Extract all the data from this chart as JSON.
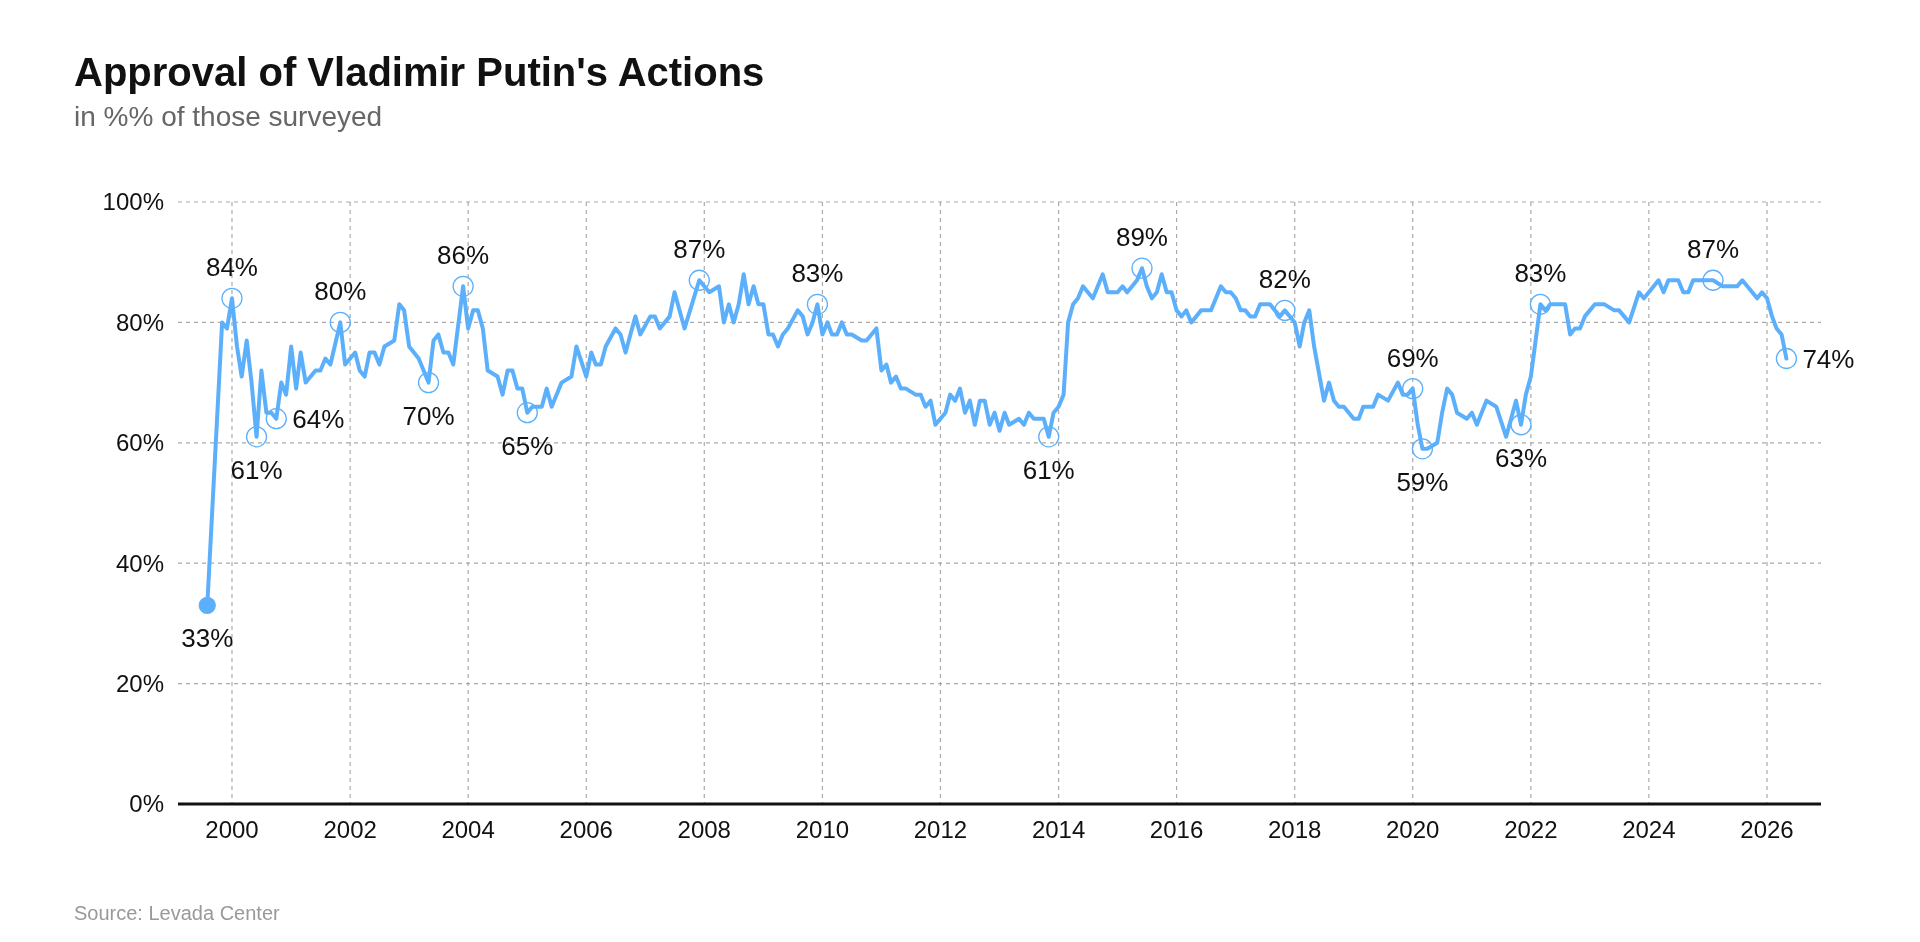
{
  "chart_data": {
    "type": "line",
    "title": "Approval of Vladimir Putin's Actions",
    "subtitle": "in %% of those surveyed",
    "x": [
      "1999-08",
      "1999-11",
      "1999-12",
      "2000-01",
      "2000-02",
      "2000-03",
      "2000-04",
      "2000-05",
      "2000-06",
      "2000-07",
      "2000-08",
      "2000-09",
      "2000-10",
      "2000-11",
      "2000-12",
      "2001-01",
      "2001-02",
      "2001-03",
      "2001-04",
      "2001-06",
      "2001-07",
      "2001-08",
      "2001-09",
      "2001-11",
      "2001-12",
      "2002-02",
      "2002-03",
      "2002-04",
      "2002-05",
      "2002-06",
      "2002-07",
      "2002-08",
      "2002-10",
      "2002-11",
      "2002-12",
      "2003-01",
      "2003-03",
      "2003-05",
      "2003-06",
      "2003-07",
      "2003-08",
      "2003-09",
      "2003-10",
      "2003-12",
      "2004-01",
      "2004-02",
      "2004-03",
      "2004-04",
      "2004-05",
      "2004-07",
      "2004-08",
      "2004-09",
      "2004-10",
      "2004-11",
      "2004-12",
      "2005-01",
      "2005-02",
      "2005-04",
      "2005-05",
      "2005-06",
      "2005-08",
      "2005-10",
      "2005-11",
      "2006-01",
      "2006-02",
      "2006-03",
      "2006-04",
      "2006-05",
      "2006-07",
      "2006-08",
      "2006-09",
      "2006-10",
      "2006-11",
      "2006-12",
      "2007-02",
      "2007-03",
      "2007-04",
      "2007-06",
      "2007-07",
      "2007-09",
      "2007-12",
      "2008-02",
      "2008-04",
      "2008-05",
      "2008-06",
      "2008-07",
      "2008-08",
      "2008-09",
      "2008-10",
      "2008-11",
      "2008-12",
      "2009-01",
      "2009-02",
      "2009-03",
      "2009-04",
      "2009-05",
      "2009-06",
      "2009-08",
      "2009-09",
      "2009-10",
      "2009-11",
      "2009-12",
      "2010-01",
      "2010-02",
      "2010-03",
      "2010-04",
      "2010-05",
      "2010-06",
      "2010-07",
      "2010-09",
      "2010-10",
      "2010-12",
      "2011-01",
      "2011-02",
      "2011-03",
      "2011-04",
      "2011-05",
      "2011-06",
      "2011-08",
      "2011-09",
      "2011-10",
      "2011-11",
      "2011-12",
      "2012-02",
      "2012-03",
      "2012-04",
      "2012-05",
      "2012-06",
      "2012-07",
      "2012-08",
      "2012-09",
      "2012-10",
      "2012-11",
      "2012-12",
      "2013-01",
      "2013-02",
      "2013-03",
      "2013-05",
      "2013-06",
      "2013-07",
      "2013-08",
      "2013-10",
      "2013-11",
      "2013-12",
      "2014-01",
      "2014-02",
      "2014-03",
      "2014-04",
      "2014-05",
      "2014-06",
      "2014-07",
      "2014-08",
      "2014-10",
      "2014-11",
      "2015-01",
      "2015-02",
      "2015-03",
      "2015-04",
      "2015-05",
      "2015-06",
      "2015-07",
      "2015-08",
      "2015-09",
      "2015-10",
      "2015-11",
      "2015-12",
      "2016-01",
      "2016-02",
      "2016-03",
      "2016-04",
      "2016-06",
      "2016-08",
      "2016-10",
      "2016-11",
      "2016-12",
      "2017-01",
      "2017-02",
      "2017-03",
      "2017-04",
      "2017-05",
      "2017-06",
      "2017-08",
      "2017-10",
      "2017-11",
      "2018-01",
      "2018-02",
      "2018-03",
      "2018-04",
      "2018-05",
      "2018-07",
      "2018-08",
      "2018-09",
      "2018-10",
      "2018-11",
      "2019-01",
      "2019-02",
      "2019-03",
      "2019-05",
      "2019-06",
      "2019-08",
      "2019-10",
      "2019-11",
      "2019-12",
      "2020-01",
      "2020-02",
      "2020-03",
      "2020-04",
      "2020-06",
      "2020-07",
      "2020-08",
      "2020-09",
      "2020-10",
      "2020-12",
      "2021-01",
      "2021-02",
      "2021-04",
      "2021-06",
      "2021-08",
      "2021-10",
      "2021-11",
      "2021-12",
      "2022-01",
      "2022-03",
      "2022-04",
      "2022-05",
      "2022-08",
      "2022-09",
      "2022-10",
      "2022-11",
      "2022-12",
      "2023-02",
      "2023-03",
      "2023-04",
      "2023-06",
      "2023-07",
      "2023-08",
      "2023-09",
      "2023-11",
      "2023-12",
      "2024-01",
      "2024-03",
      "2024-04",
      "2024-05",
      "2024-07",
      "2024-08",
      "2024-09",
      "2024-10",
      "2024-12",
      "2025-02",
      "2025-04",
      "2025-07",
      "2025-08",
      "2025-09",
      "2025-11",
      "2025-12",
      "2026-01",
      "2026-02",
      "2026-03",
      "2026-04",
      "2026-05"
    ],
    "series": [
      {
        "color": "#5cb0fb",
        "values": [
          33,
          80,
          79,
          84,
          76,
          71,
          77,
          70,
          61,
          72,
          65,
          65,
          64,
          70,
          68,
          76,
          69,
          75,
          70,
          72,
          72,
          74,
          73,
          80,
          73,
          75,
          72,
          71,
          75,
          75,
          73,
          76,
          77,
          83,
          82,
          76,
          74,
          70,
          77,
          78,
          75,
          75,
          73,
          86,
          79,
          82,
          82,
          79,
          72,
          71,
          68,
          72,
          72,
          69,
          69,
          65,
          66,
          66,
          69,
          66,
          70,
          71,
          76,
          71,
          75,
          73,
          73,
          76,
          79,
          78,
          75,
          78,
          81,
          78,
          81,
          81,
          79,
          81,
          85,
          79,
          87,
          85,
          86,
          80,
          83,
          80,
          83,
          88,
          83,
          86,
          83,
          83,
          78,
          78,
          76,
          78,
          79,
          82,
          81,
          78,
          80,
          83,
          78,
          80,
          78,
          78,
          80,
          78,
          78,
          77,
          77,
          79,
          72,
          73,
          70,
          71,
          69,
          69,
          68,
          68,
          66,
          67,
          63,
          65,
          68,
          67,
          69,
          65,
          67,
          63,
          67,
          67,
          63,
          65,
          62,
          65,
          63,
          64,
          63,
          65,
          64,
          64,
          61,
          65,
          66,
          68,
          80,
          83,
          84,
          86,
          85,
          84,
          88,
          85,
          85,
          86,
          85,
          86,
          87,
          89,
          86,
          84,
          85,
          88,
          85,
          85,
          82,
          81,
          82,
          80,
          82,
          82,
          86,
          85,
          85,
          84,
          82,
          82,
          81,
          81,
          83,
          83,
          81,
          82,
          80,
          76,
          80,
          82,
          76,
          67,
          70,
          67,
          66,
          66,
          64,
          64,
          66,
          66,
          68,
          67,
          70,
          68,
          68,
          69,
          63,
          59,
          59,
          60,
          65,
          69,
          68,
          65,
          64,
          65,
          63,
          67,
          66,
          61,
          67,
          63,
          68,
          71,
          83,
          82,
          83,
          83,
          78,
          79,
          79,
          81,
          83,
          83,
          83,
          82,
          82,
          81,
          80,
          85,
          84,
          85,
          87,
          85,
          87,
          87,
          85,
          85,
          87,
          87,
          87,
          86,
          86,
          87,
          86,
          84,
          85,
          84,
          81,
          79,
          78,
          74
        ]
      }
    ],
    "xlim": [
      "1999-02",
      "2026-12"
    ],
    "xticks": [
      "2000",
      "2002",
      "2004",
      "2006",
      "2008",
      "2010",
      "2012",
      "2014",
      "2016",
      "2018",
      "2020",
      "2022",
      "2024",
      "2026"
    ],
    "ylim": [
      0,
      100
    ],
    "yticks": [
      {
        "value": 0,
        "label": "0%"
      },
      {
        "value": 20,
        "label": "20%"
      },
      {
        "value": 40,
        "label": "40%"
      },
      {
        "value": 60,
        "label": "60%"
      },
      {
        "value": 80,
        "label": "80%"
      },
      {
        "value": 100,
        "label": "100%"
      }
    ],
    "grid": true,
    "line_style": "solid",
    "marker": "none",
    "annotations": [
      {
        "text": "33%",
        "x": "1999-08",
        "y": 33
      },
      {
        "text": "84%",
        "x": "2000-01",
        "y": 84
      },
      {
        "text": "61%",
        "x": "2000-06",
        "y": 61
      },
      {
        "text": "64%",
        "x": "2000-10",
        "y": 64
      },
      {
        "text": "80%",
        "x": "2001-11",
        "y": 80
      },
      {
        "text": "70%",
        "x": "2003-05",
        "y": 70
      },
      {
        "text": "86%",
        "x": "2003-12",
        "y": 86
      },
      {
        "text": "65%",
        "x": "2005-01",
        "y": 65
      },
      {
        "text": "87%",
        "x": "2007-12",
        "y": 87
      },
      {
        "text": "83%",
        "x": "2009-12",
        "y": 83
      },
      {
        "text": "61%",
        "x": "2013-11",
        "y": 61
      },
      {
        "text": "89%",
        "x": "2015-06",
        "y": 89
      },
      {
        "text": "82%",
        "x": "2017-11",
        "y": 82
      },
      {
        "text": "69%",
        "x": "2020-01",
        "y": 69
      },
      {
        "text": "59%",
        "x": "2020-03",
        "y": 59
      },
      {
        "text": "63%",
        "x": "2021-11",
        "y": 63
      },
      {
        "text": "83%",
        "x": "2022-03",
        "y": 83
      },
      {
        "text": "87%",
        "x": "2025-02",
        "y": 87
      },
      {
        "text": "74%",
        "x": "2026-05",
        "y": 74
      },
      "Source: Levada Center"
    ]
  }
}
